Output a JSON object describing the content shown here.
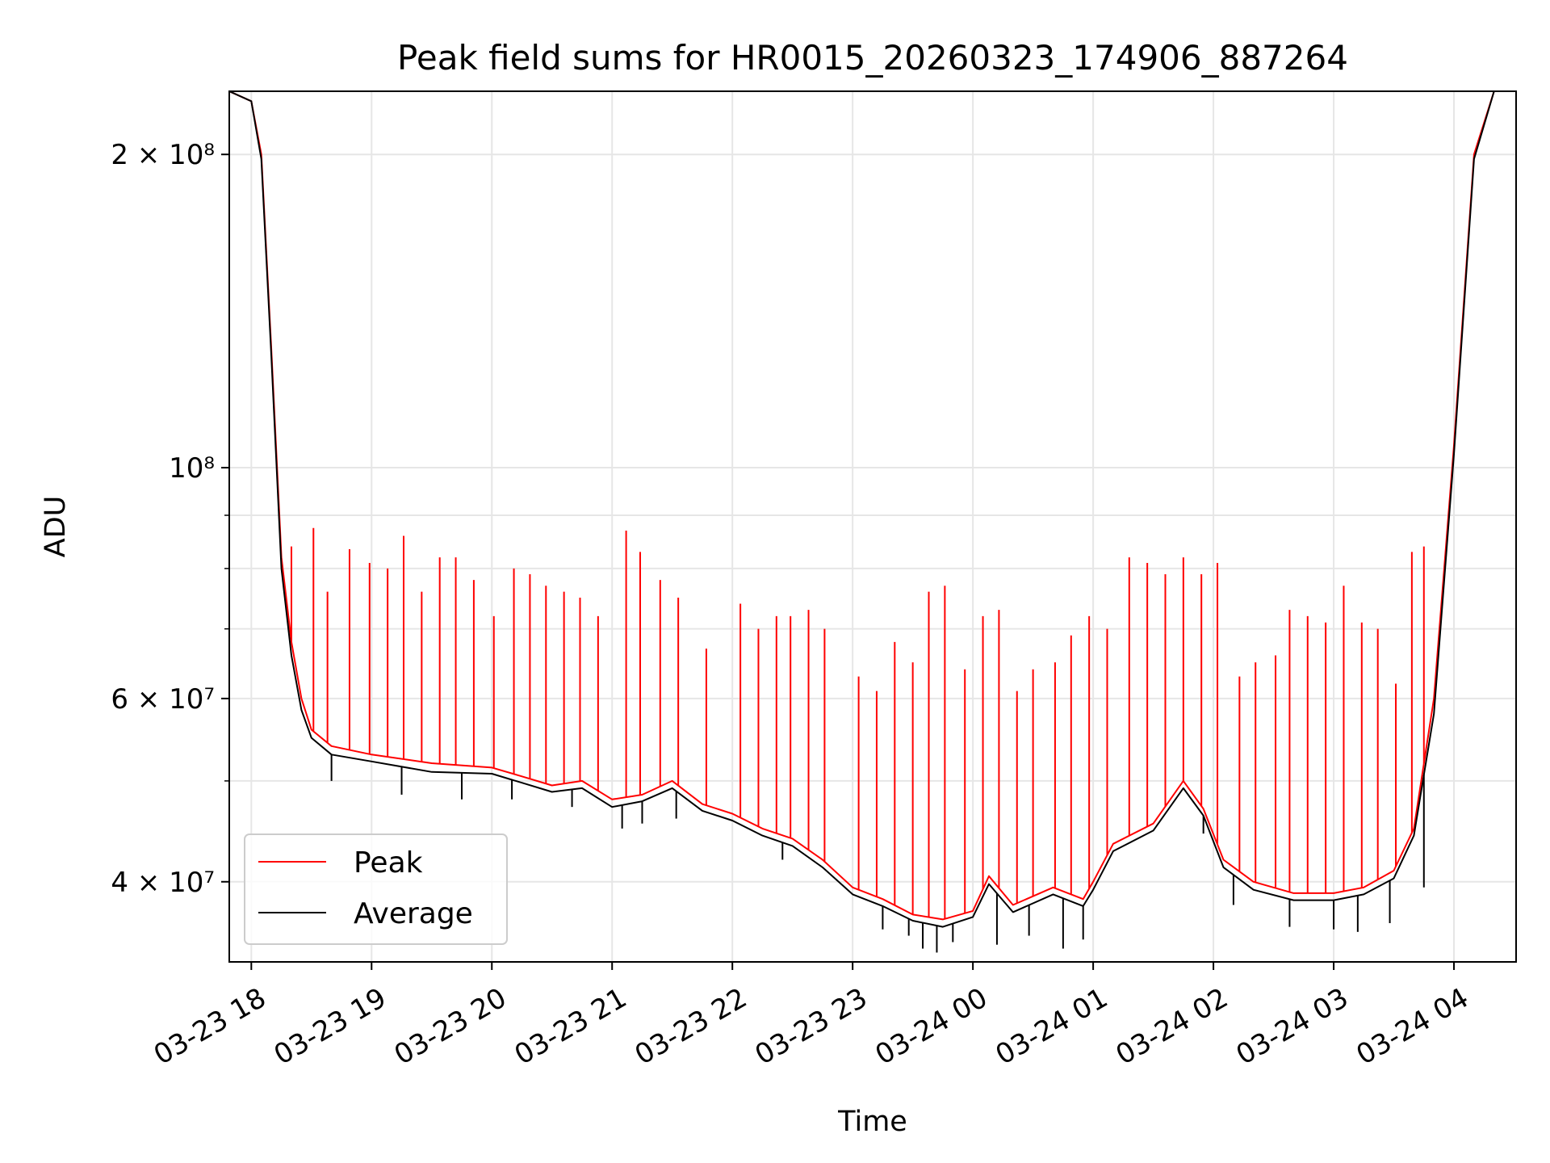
{
  "chart_data": {
    "type": "line",
    "title": "Peak field sums for HR0015_20260323_174906_887264",
    "xlabel": "Time",
    "ylabel": "ADU",
    "y_scale": "log",
    "ylim": [
      33500000,
      230000000
    ],
    "xlim": [
      "2026-03-23 17:49",
      "2026-03-24 04:31"
    ],
    "x_ticks": [
      {
        "label": "03-23 18",
        "at": "2026-03-23 18:00"
      },
      {
        "label": "03-23 19",
        "at": "2026-03-23 19:00"
      },
      {
        "label": "03-23 20",
        "at": "2026-03-23 20:00"
      },
      {
        "label": "03-23 21",
        "at": "2026-03-23 21:00"
      },
      {
        "label": "03-23 22",
        "at": "2026-03-23 22:00"
      },
      {
        "label": "03-23 23",
        "at": "2026-03-23 23:00"
      },
      {
        "label": "03-24 00",
        "at": "2026-03-24 00:00"
      },
      {
        "label": "03-24 01",
        "at": "2026-03-24 01:00"
      },
      {
        "label": "03-24 02",
        "at": "2026-03-24 02:00"
      },
      {
        "label": "03-24 03",
        "at": "2026-03-24 03:00"
      },
      {
        "label": "03-24 04",
        "at": "2026-03-24 04:00"
      }
    ],
    "y_major_ticks": [
      {
        "label": "4 × 10⁷",
        "value": 40000000
      },
      {
        "label": "6 × 10⁷",
        "value": 60000000
      },
      {
        "label": "10⁸",
        "value": 100000000
      },
      {
        "label": "2 × 10⁸",
        "value": 200000000
      }
    ],
    "y_minor_ticks": [
      50000000,
      70000000,
      80000000,
      90000000
    ],
    "grid": true,
    "legend": {
      "placement": "bottom-left"
    },
    "series": [
      {
        "name": "Peak",
        "color": "#ff0000",
        "points": [
          [
            "2026-03-23 17:49",
            230000000
          ],
          [
            "2026-03-23 18:00",
            225000000
          ],
          [
            "2026-03-23 18:05",
            200000000
          ],
          [
            "2026-03-23 18:10",
            130000000
          ],
          [
            "2026-03-23 18:15",
            82000000
          ],
          [
            "2026-03-23 18:20",
            68000000
          ],
          [
            "2026-03-23 18:25",
            60000000
          ],
          [
            "2026-03-23 18:30",
            56000000
          ],
          [
            "2026-03-23 18:40",
            54000000
          ],
          [
            "2026-03-23 19:00",
            53000000
          ],
          [
            "2026-03-23 19:30",
            52000000
          ],
          [
            "2026-03-23 20:00",
            51500000
          ],
          [
            "2026-03-23 20:15",
            50500000
          ],
          [
            "2026-03-23 20:30",
            49500000
          ],
          [
            "2026-03-23 20:45",
            50000000
          ],
          [
            "2026-03-23 21:00",
            48000000
          ],
          [
            "2026-03-23 21:15",
            48500000
          ],
          [
            "2026-03-23 21:30",
            50000000
          ],
          [
            "2026-03-23 21:45",
            47500000
          ],
          [
            "2026-03-23 22:00",
            46500000
          ],
          [
            "2026-03-23 22:15",
            45000000
          ],
          [
            "2026-03-23 22:30",
            44000000
          ],
          [
            "2026-03-23 22:45",
            42000000
          ],
          [
            "2026-03-23 23:00",
            39500000
          ],
          [
            "2026-03-23 23:15",
            38500000
          ],
          [
            "2026-03-23 23:30",
            37200000
          ],
          [
            "2026-03-23 23:45",
            36800000
          ],
          [
            "2026-03-24 00:00",
            37500000
          ],
          [
            "2026-03-24 00:08",
            40500000
          ],
          [
            "2026-03-24 00:20",
            38000000
          ],
          [
            "2026-03-24 00:40",
            39500000
          ],
          [
            "2026-03-24 00:55",
            38500000
          ],
          [
            "2026-03-24 01:00",
            40000000
          ],
          [
            "2026-03-24 01:10",
            43500000
          ],
          [
            "2026-03-24 01:30",
            45500000
          ],
          [
            "2026-03-24 01:45",
            50000000
          ],
          [
            "2026-03-24 01:55",
            47000000
          ],
          [
            "2026-03-24 02:05",
            42000000
          ],
          [
            "2026-03-24 02:20",
            40000000
          ],
          [
            "2026-03-24 02:40",
            39000000
          ],
          [
            "2026-03-24 03:00",
            39000000
          ],
          [
            "2026-03-24 03:15",
            39500000
          ],
          [
            "2026-03-24 03:30",
            41000000
          ],
          [
            "2026-03-24 03:40",
            45000000
          ],
          [
            "2026-03-24 03:50",
            60000000
          ],
          [
            "2026-03-24 04:00",
            105000000
          ],
          [
            "2026-03-24 04:10",
            200000000
          ],
          [
            "2026-03-24 04:20",
            230000000
          ],
          [
            "2026-03-24 04:31",
            230000000
          ]
        ],
        "spikes": [
          [
            "2026-03-23 18:20",
            84000000
          ],
          [
            "2026-03-23 18:31",
            87500000
          ],
          [
            "2026-03-23 18:38",
            76000000
          ],
          [
            "2026-03-23 18:49",
            83500000
          ],
          [
            "2026-03-23 18:59",
            81000000
          ],
          [
            "2026-03-23 19:08",
            80000000
          ],
          [
            "2026-03-23 19:16",
            86000000
          ],
          [
            "2026-03-23 19:25",
            76000000
          ],
          [
            "2026-03-23 19:34",
            82000000
          ],
          [
            "2026-03-23 19:42",
            82000000
          ],
          [
            "2026-03-23 19:51",
            78000000
          ],
          [
            "2026-03-23 20:01",
            72000000
          ],
          [
            "2026-03-23 20:11",
            80000000
          ],
          [
            "2026-03-23 20:19",
            79000000
          ],
          [
            "2026-03-23 20:27",
            77000000
          ],
          [
            "2026-03-23 20:36",
            76000000
          ],
          [
            "2026-03-23 20:44",
            75000000
          ],
          [
            "2026-03-23 20:53",
            72000000
          ],
          [
            "2026-03-23 21:07",
            87000000
          ],
          [
            "2026-03-23 21:14",
            83000000
          ],
          [
            "2026-03-23 21:24",
            78000000
          ],
          [
            "2026-03-23 21:33",
            75000000
          ],
          [
            "2026-03-23 21:47",
            67000000
          ],
          [
            "2026-03-23 22:04",
            74000000
          ],
          [
            "2026-03-23 22:13",
            70000000
          ],
          [
            "2026-03-23 22:22",
            72000000
          ],
          [
            "2026-03-23 22:29",
            72000000
          ],
          [
            "2026-03-23 22:38",
            73000000
          ],
          [
            "2026-03-23 22:46",
            70000000
          ],
          [
            "2026-03-23 23:03",
            63000000
          ],
          [
            "2026-03-23 23:12",
            61000000
          ],
          [
            "2026-03-23 23:21",
            68000000
          ],
          [
            "2026-03-23 23:30",
            65000000
          ],
          [
            "2026-03-23 23:38",
            76000000
          ],
          [
            "2026-03-23 23:46",
            77000000
          ],
          [
            "2026-03-23 23:56",
            64000000
          ],
          [
            "2026-03-24 00:05",
            72000000
          ],
          [
            "2026-03-24 00:13",
            73000000
          ],
          [
            "2026-03-24 00:22",
            61000000
          ],
          [
            "2026-03-24 00:30",
            64000000
          ],
          [
            "2026-03-24 00:41",
            65000000
          ],
          [
            "2026-03-24 00:49",
            69000000
          ],
          [
            "2026-03-24 00:58",
            72000000
          ],
          [
            "2026-03-24 01:07",
            70000000
          ],
          [
            "2026-03-24 01:18",
            82000000
          ],
          [
            "2026-03-24 01:27",
            81000000
          ],
          [
            "2026-03-24 01:36",
            79000000
          ],
          [
            "2026-03-24 01:45",
            82000000
          ],
          [
            "2026-03-24 01:54",
            79000000
          ],
          [
            "2026-03-24 02:02",
            81000000
          ],
          [
            "2026-03-24 02:13",
            63000000
          ],
          [
            "2026-03-24 02:21",
            65000000
          ],
          [
            "2026-03-24 02:31",
            66000000
          ],
          [
            "2026-03-24 02:38",
            73000000
          ],
          [
            "2026-03-24 02:47",
            72000000
          ],
          [
            "2026-03-24 02:56",
            71000000
          ],
          [
            "2026-03-24 03:05",
            77000000
          ],
          [
            "2026-03-24 03:14",
            71000000
          ],
          [
            "2026-03-24 03:22",
            70000000
          ],
          [
            "2026-03-24 03:31",
            62000000
          ],
          [
            "2026-03-24 03:39",
            83000000
          ],
          [
            "2026-03-24 03:45",
            84000000
          ]
        ]
      },
      {
        "name": "Average",
        "color": "#000000",
        "points": [
          [
            "2026-03-23 17:49",
            230000000
          ],
          [
            "2026-03-23 18:00",
            225000000
          ],
          [
            "2026-03-23 18:05",
            198000000
          ],
          [
            "2026-03-23 18:10",
            128000000
          ],
          [
            "2026-03-23 18:15",
            80000000
          ],
          [
            "2026-03-23 18:20",
            66000000
          ],
          [
            "2026-03-23 18:25",
            58500000
          ],
          [
            "2026-03-23 18:30",
            55000000
          ],
          [
            "2026-03-23 18:40",
            53000000
          ],
          [
            "2026-03-23 19:00",
            52200000
          ],
          [
            "2026-03-23 19:30",
            51000000
          ],
          [
            "2026-03-23 20:00",
            50800000
          ],
          [
            "2026-03-23 20:15",
            49800000
          ],
          [
            "2026-03-23 20:30",
            48800000
          ],
          [
            "2026-03-23 20:45",
            49200000
          ],
          [
            "2026-03-23 21:00",
            47200000
          ],
          [
            "2026-03-23 21:15",
            47800000
          ],
          [
            "2026-03-23 21:30",
            49200000
          ],
          [
            "2026-03-23 21:45",
            46800000
          ],
          [
            "2026-03-23 22:00",
            45800000
          ],
          [
            "2026-03-23 22:15",
            44300000
          ],
          [
            "2026-03-23 22:30",
            43300000
          ],
          [
            "2026-03-23 22:45",
            41300000
          ],
          [
            "2026-03-23 23:00",
            38900000
          ],
          [
            "2026-03-23 23:15",
            37900000
          ],
          [
            "2026-03-23 23:30",
            36700000
          ],
          [
            "2026-03-23 23:45",
            36200000
          ],
          [
            "2026-03-24 00:00",
            37000000
          ],
          [
            "2026-03-24 00:08",
            39800000
          ],
          [
            "2026-03-24 00:20",
            37400000
          ],
          [
            "2026-03-24 00:40",
            38900000
          ],
          [
            "2026-03-24 00:55",
            37900000
          ],
          [
            "2026-03-24 01:00",
            39300000
          ],
          [
            "2026-03-24 01:10",
            42800000
          ],
          [
            "2026-03-24 01:30",
            44800000
          ],
          [
            "2026-03-24 01:45",
            49200000
          ],
          [
            "2026-03-24 01:55",
            46300000
          ],
          [
            "2026-03-24 02:05",
            41300000
          ],
          [
            "2026-03-24 02:20",
            39300000
          ],
          [
            "2026-03-24 02:40",
            38400000
          ],
          [
            "2026-03-24 03:00",
            38400000
          ],
          [
            "2026-03-24 03:15",
            38900000
          ],
          [
            "2026-03-24 03:30",
            40300000
          ],
          [
            "2026-03-24 03:40",
            44300000
          ],
          [
            "2026-03-24 03:50",
            58000000
          ],
          [
            "2026-03-24 04:00",
            103000000
          ],
          [
            "2026-03-24 04:10",
            198000000
          ],
          [
            "2026-03-24 04:20",
            230000000
          ],
          [
            "2026-03-24 04:31",
            230000000
          ]
        ],
        "dips": [
          [
            "2026-03-23 18:40",
            50000000
          ],
          [
            "2026-03-23 19:15",
            48500000
          ],
          [
            "2026-03-23 19:45",
            48000000
          ],
          [
            "2026-03-23 20:10",
            48000000
          ],
          [
            "2026-03-23 20:40",
            47200000
          ],
          [
            "2026-03-23 21:05",
            45000000
          ],
          [
            "2026-03-23 21:15",
            45500000
          ],
          [
            "2026-03-23 21:32",
            46000000
          ],
          [
            "2026-03-23 22:25",
            42000000
          ],
          [
            "2026-03-23 23:15",
            36000000
          ],
          [
            "2026-03-23 23:28",
            35500000
          ],
          [
            "2026-03-23 23:35",
            34500000
          ],
          [
            "2026-03-23 23:42",
            34200000
          ],
          [
            "2026-03-23 23:50",
            35000000
          ],
          [
            "2026-03-24 00:12",
            34800000
          ],
          [
            "2026-03-24 00:28",
            35500000
          ],
          [
            "2026-03-24 00:45",
            34500000
          ],
          [
            "2026-03-24 00:55",
            35200000
          ],
          [
            "2026-03-24 01:55",
            44500000
          ],
          [
            "2026-03-24 02:10",
            38000000
          ],
          [
            "2026-03-24 02:38",
            36200000
          ],
          [
            "2026-03-24 03:00",
            36000000
          ],
          [
            "2026-03-24 03:12",
            35800000
          ],
          [
            "2026-03-24 03:28",
            36500000
          ],
          [
            "2026-03-24 03:45",
            39500000
          ]
        ]
      }
    ]
  }
}
